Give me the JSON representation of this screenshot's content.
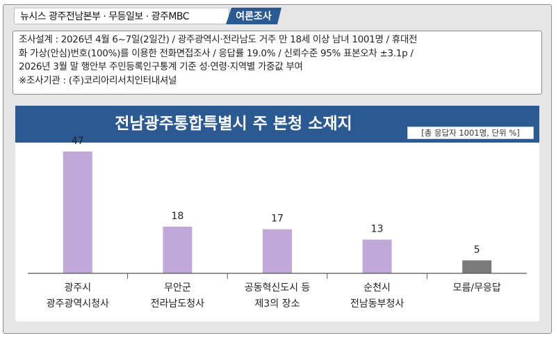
{
  "header": {
    "source_label": "뉴시스  광주전남본부 · 무등일보 · 광주MBC",
    "tag_label": "여론조사"
  },
  "methodology": {
    "lines": [
      "조사설계 : 2026년 4월 6~7일(2일간) / 광주광역시·전라남도 거주 만 18세 이상 남녀 1001명 / 휴대전",
      "화 가상(안심)번호(100%)를 이용한 전화면접조사 / 응답률 19.0% / 신뢰수준 95% 표본오차 ±3.1p /",
      "2026년 3월 말 행안부 주민등록인구통계 기준 성·연령·지역별 가중값 부여",
      "※조사기관 : (주)코리아리서치인터내셔널"
    ]
  },
  "chart_data": {
    "type": "bar",
    "title": "전남광주통합특별시 주 본청 소재지",
    "unit_note": "[총 응답자 1001명, 단위 %]",
    "categories": [
      [
        "광주시",
        "광주광역시청사"
      ],
      [
        "무안군",
        "전라남도청사"
      ],
      [
        "공동혁신도시  등",
        "제3의 장소"
      ],
      [
        "순천시",
        "전남동부청사"
      ],
      [
        "모름/무응답"
      ]
    ],
    "values": [
      47,
      18,
      17,
      13,
      5
    ],
    "ylim": [
      0,
      55
    ],
    "colors": {
      "bar": "#bfa9d9",
      "bar_no_answer": "#7a7a7a",
      "header": "#2b5a93"
    }
  }
}
